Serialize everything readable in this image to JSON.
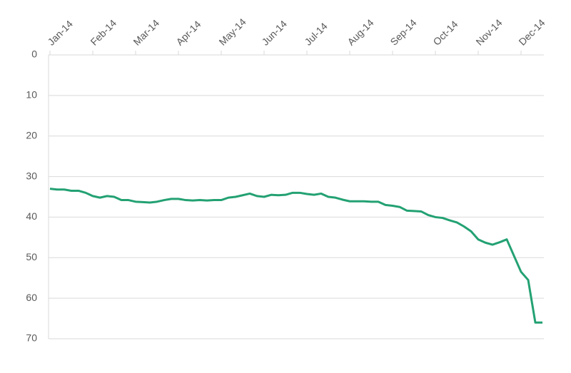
{
  "chart_data": {
    "type": "line",
    "categories": [
      "Jan-14",
      null,
      null,
      null,
      null,
      null,
      "Feb-14",
      null,
      null,
      null,
      null,
      null,
      "Mar-14",
      null,
      null,
      null,
      null,
      null,
      "Apr-14",
      null,
      null,
      null,
      null,
      null,
      "May-14",
      null,
      null,
      null,
      null,
      null,
      "Jun-14",
      null,
      null,
      null,
      null,
      null,
      "Jul-14",
      null,
      null,
      null,
      null,
      null,
      "Aug-14",
      null,
      null,
      null,
      null,
      null,
      "Sep-14",
      null,
      null,
      null,
      null,
      null,
      "Oct-14",
      null,
      null,
      null,
      null,
      null,
      "Nov-14",
      null,
      null,
      null,
      null,
      null,
      "Dec-14",
      null,
      null,
      null
    ],
    "series": [
      {
        "color": "#23a173",
        "values": [
          33,
          33.2,
          33.2,
          33.5,
          33.5,
          34,
          34.8,
          35.2,
          34.8,
          35,
          35.8,
          35.8,
          36.2,
          36.3,
          36.4,
          36.2,
          35.8,
          35.5,
          35.5,
          35.8,
          35.9,
          35.8,
          35.9,
          35.8,
          35.8,
          35.2,
          35,
          34.6,
          34.2,
          34.8,
          35,
          34.5,
          34.6,
          34.5,
          34,
          34,
          34.3,
          34.5,
          34.2,
          35,
          35.2,
          35.7,
          36.1,
          36.1,
          36.1,
          36.2,
          36.2,
          37,
          37.2,
          37.5,
          38.4,
          38.5,
          38.6,
          39.5,
          40,
          40.2,
          40.8,
          41.3,
          42.3,
          43.5,
          45.5,
          46.3,
          46.8,
          46.2,
          45.5,
          49.5,
          53.5,
          55.5,
          66,
          66
        ]
      }
    ],
    "ylim": [
      0,
      70
    ],
    "yticks": [
      0,
      10,
      20,
      30,
      40,
      50,
      60,
      70
    ],
    "y_inverted": true,
    "grid": true
  }
}
